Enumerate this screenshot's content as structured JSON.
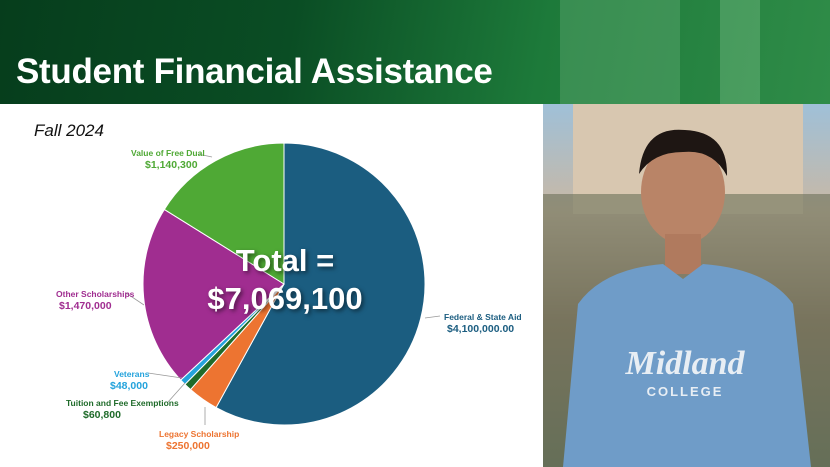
{
  "header": {
    "title": "Student Financial Assistance"
  },
  "subtitle": "Fall 2024",
  "total_label": [
    "Total =",
    "$7,069,100"
  ],
  "photo": {
    "shirt_logo": "Midland COLLEGE"
  },
  "chart_data": {
    "type": "pie",
    "start": "top, clockwise",
    "slices": [
      {
        "label": "Federal & State Aid",
        "value_text": "$4,100,000.00",
        "value": 4100000,
        "color": "#1b5d80"
      },
      {
        "label": "Legacy Scholarship",
        "value_text": "$250,000",
        "value": 250000,
        "color": "#ed7431"
      },
      {
        "label": "Tuition and Fee Exemptions",
        "value_text": "$60,800",
        "value": 60800,
        "color": "#1f6b2a"
      },
      {
        "label": "Veterans",
        "value_text": "$48,000",
        "value": 48000,
        "color": "#24a3dc"
      },
      {
        "label": "Other Scholarships",
        "value_text": "$1,470,000",
        "value": 1470000,
        "color": "#a02d90"
      },
      {
        "label": "Value of Free Dual",
        "value_text": "$1,140,300",
        "value": 1140300,
        "color": "#4fa935"
      }
    ]
  }
}
